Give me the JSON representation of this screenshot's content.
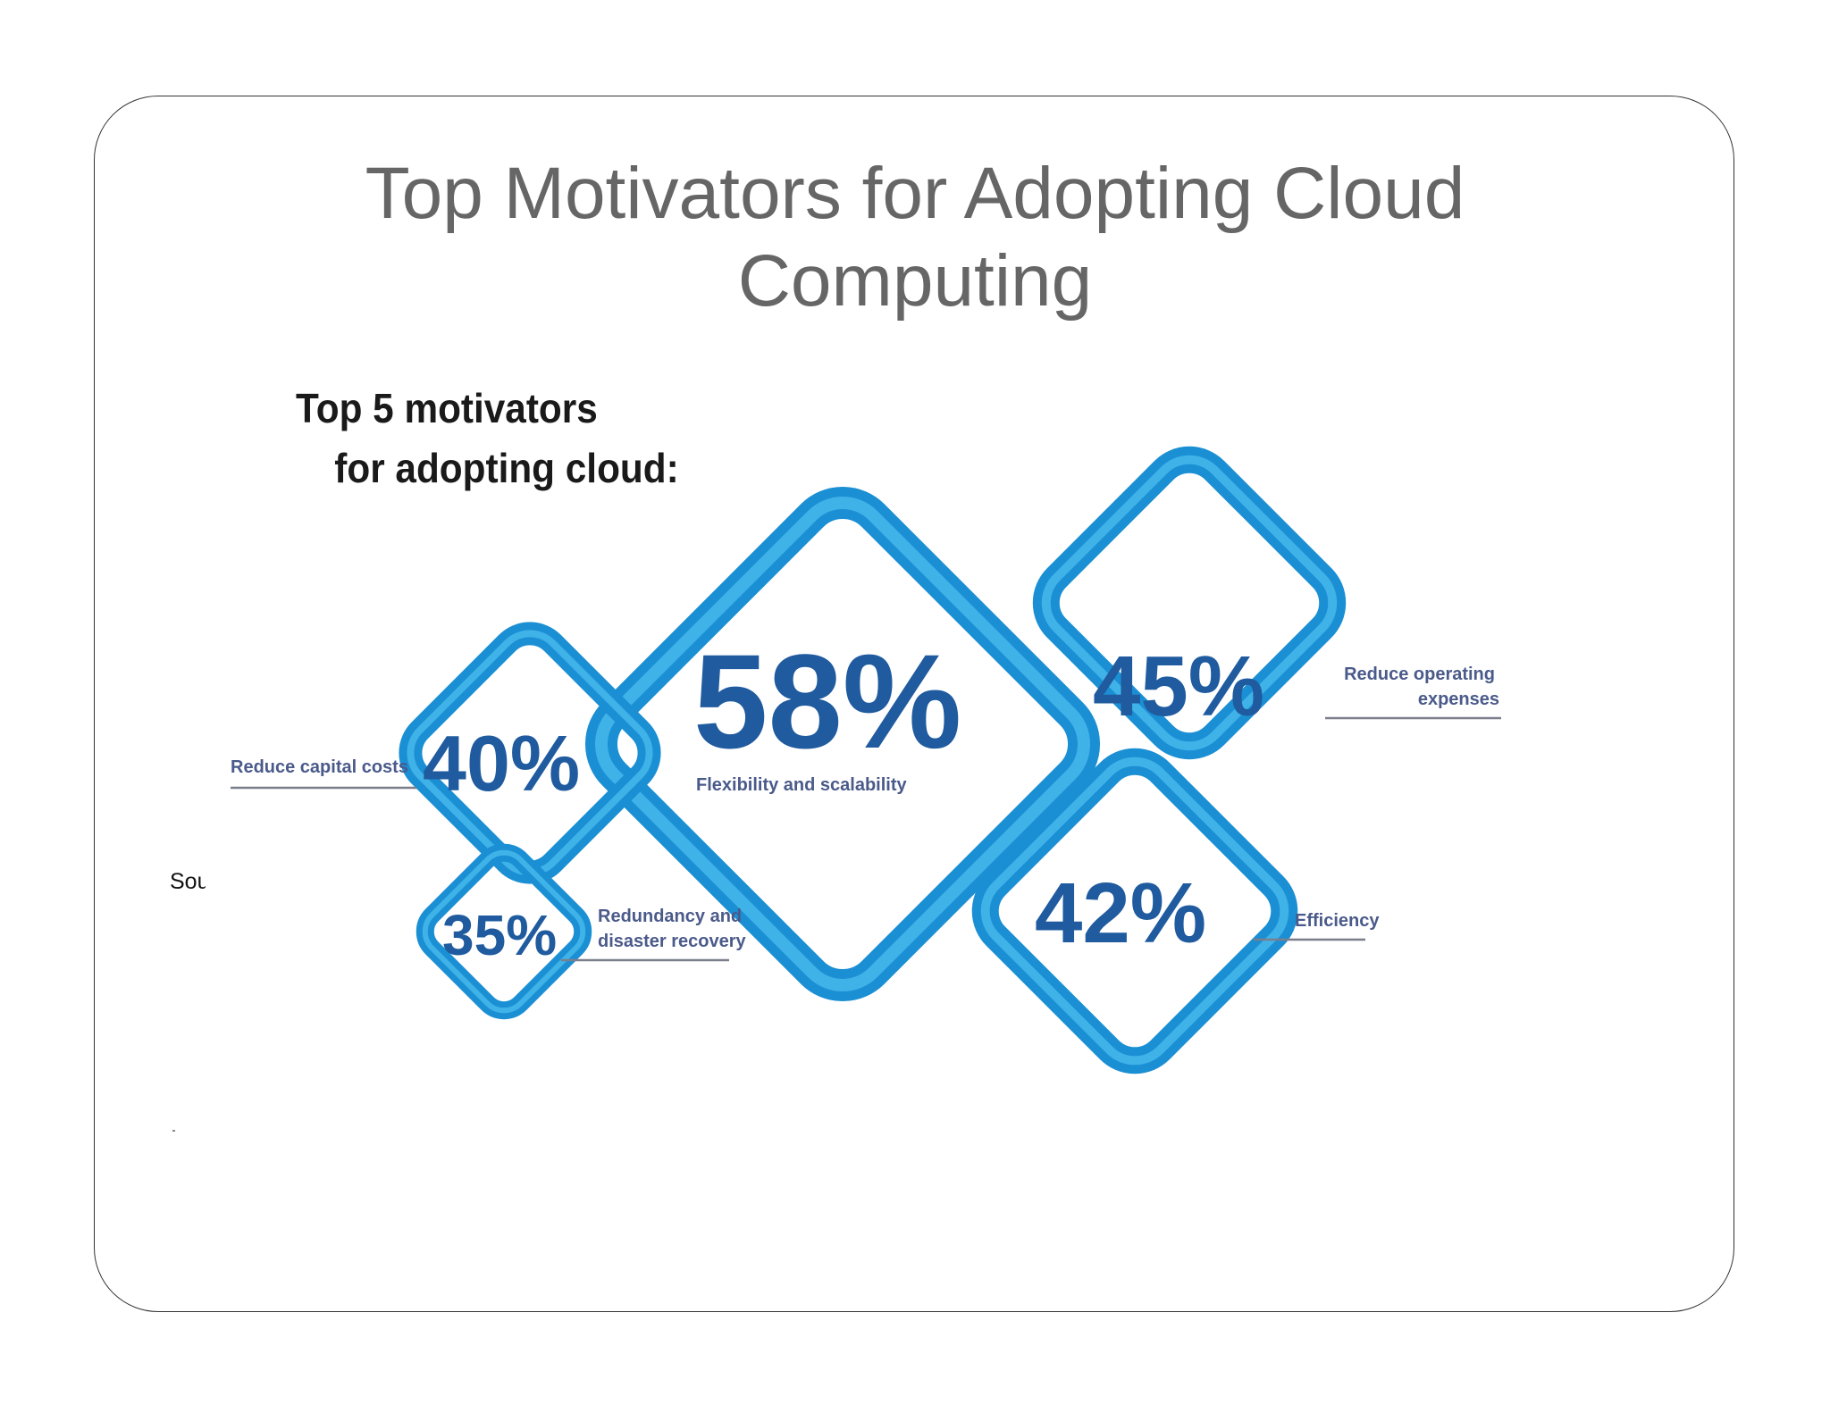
{
  "slide": {
    "title_line1": "Top Motivators for Adopting Cloud",
    "title_line2": "Computing",
    "side_note": "Sou"
  },
  "infographic": {
    "heading_line1": "Top 5 motivators",
    "heading_line2": "for adopting cloud:",
    "motivators": [
      {
        "value": "58%",
        "label_line1": "Flexibility and scalability",
        "label_line2": ""
      },
      {
        "value": "45%",
        "label_line1": "Reduce operating",
        "label_line2": "expenses"
      },
      {
        "value": "42%",
        "label_line1": "Efficiency",
        "label_line2": ""
      },
      {
        "value": "40%",
        "label_line1": "Reduce capital costs",
        "label_line2": ""
      },
      {
        "value": "35%",
        "label_line1": "Redundancy and",
        "label_line2": "disaster recovery"
      }
    ],
    "colors": {
      "diamond_light": "#29a3e0",
      "diamond_dark": "#0f77c0",
      "number": "#1f5b9e",
      "label": "#4a5a8a",
      "heading": "#1a1a1a",
      "underline": "#7a7f8c"
    }
  }
}
